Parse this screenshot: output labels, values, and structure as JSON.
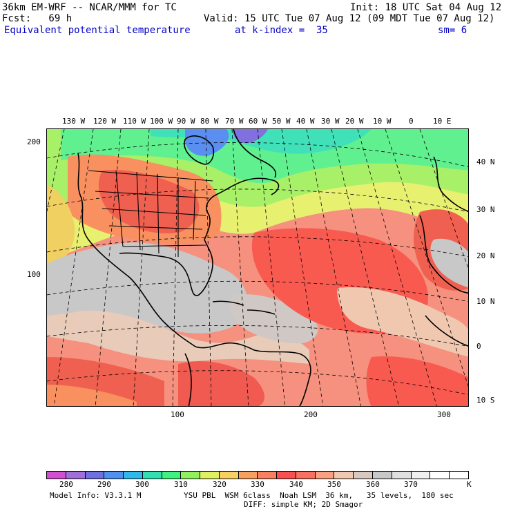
{
  "header": {
    "line1_left": "36km EM-WRF -- NCAR/MMM for TC",
    "line1_right": "Init: 18 UTC Sat 04 Aug 12",
    "line2_left": "Fcst:   69 h",
    "line2_right": "Valid: 15 UTC Tue 07 Aug 12 (09 MDT Tue 07 Aug 12)",
    "line3_field": "Equivalent potential temperature",
    "line3_level": "at k-index =  35",
    "line3_sm": "sm= 6"
  },
  "map": {
    "top_lon_labels": [
      "130 W",
      "120 W",
      "110 W",
      "100 W",
      "90 W",
      "80 W",
      "70 W",
      "60 W",
      "50 W",
      "40 W",
      "30 W",
      "20 W",
      "10 W",
      "0",
      "10 E"
    ],
    "right_lat_labels": [
      "40 N",
      "30 N",
      "20 N",
      "10 N",
      "0",
      "10 S"
    ],
    "left_grid_labels": [
      "200",
      "100"
    ],
    "bottom_grid_labels": [
      "100",
      "200",
      "300"
    ]
  },
  "colorbar": {
    "colors": [
      "#d050d0",
      "#a070d8",
      "#7070e0",
      "#5090f0",
      "#30b8e8",
      "#30e0b0",
      "#40f080",
      "#90f060",
      "#e0f060",
      "#f8d060",
      "#f8a060",
      "#f88060",
      "#f85050",
      "#f87060",
      "#f8a080",
      "#f0c8b0",
      "#d8c8c0",
      "#c8c8c8",
      "#e0e0e0",
      "#f0f0f0",
      "#ffffff",
      "#ffffff"
    ],
    "labels": [
      "280",
      "290",
      "300",
      "310",
      "320",
      "330",
      "340",
      "350",
      "360",
      "370"
    ],
    "unit": "K"
  },
  "footer": {
    "model_info": "Model Info: V3.3.1 M",
    "physics": "YSU PBL  WSM 6class  Noah LSM  36 km,   35 levels,  180 sec",
    "diffusion": "DIFF: simple KM; 2D Smagor"
  }
}
